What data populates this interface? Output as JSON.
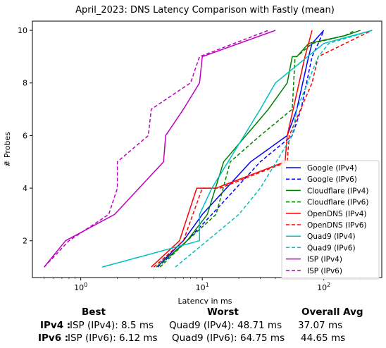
{
  "chart_data": {
    "type": "line",
    "title": "April_2023: DNS Latency Comparison with Fastly (mean)",
    "xlabel": "Latency in ms",
    "ylabel": "# Probes",
    "xscale": "log",
    "xlim": [
      0.4,
      300
    ],
    "ylim": [
      0.6,
      10.35
    ],
    "yticks": [
      2,
      4,
      6,
      8,
      10
    ],
    "xticks": [
      {
        "value": 1,
        "base": "10",
        "exp": "0"
      },
      {
        "value": 10,
        "base": "10",
        "exp": "1"
      },
      {
        "value": 100,
        "base": "10",
        "exp": "2"
      }
    ],
    "grid": false,
    "legend_position": "lower-right",
    "series": [
      {
        "name": "Google (IPv4)",
        "color": "#0000ff",
        "dash": false,
        "x": [
          4.2,
          7,
          10,
          25,
          50,
          60,
          75,
          80,
          100
        ],
        "y": [
          1,
          2,
          3,
          5,
          6,
          7,
          9,
          9.5,
          10
        ]
      },
      {
        "name": "Google (IPv6)",
        "color": "#0000ff",
        "dash": true,
        "x": [
          4.3,
          7.5,
          12,
          30,
          55,
          65,
          80,
          90,
          100
        ],
        "y": [
          1,
          2,
          3,
          5,
          6,
          7,
          9,
          9.5,
          10
        ]
      },
      {
        "name": "Cloudflare (IPv4)",
        "color": "#008000",
        "dash": false,
        "x": [
          4.2,
          7.5,
          11,
          15,
          35,
          50,
          55,
          60,
          75,
          150,
          200
        ],
        "y": [
          1,
          2,
          3,
          5,
          7,
          8,
          9,
          9,
          9.5,
          9.8,
          10
        ]
      },
      {
        "name": "Cloudflare (IPv6)",
        "color": "#008000",
        "dash": true,
        "x": [
          4.5,
          7.5,
          13,
          17,
          30,
          55,
          58,
          60,
          80,
          150,
          180
        ],
        "y": [
          1,
          2,
          3,
          5,
          6,
          7,
          9,
          9,
          9.5,
          9.8,
          10
        ]
      },
      {
        "name": "OpenDNS (IPv4)",
        "color": "#ff0000",
        "dash": false,
        "x": [
          3.8,
          6.5,
          9,
          13,
          48,
          50,
          70,
          75,
          80
        ],
        "y": [
          1,
          2,
          4,
          4,
          5,
          6,
          9,
          9.5,
          10
        ]
      },
      {
        "name": "OpenDNS (IPv6)",
        "color": "#ff0000",
        "dash": true,
        "x": [
          4,
          7,
          10,
          14,
          50,
          52,
          80,
          90,
          250
        ],
        "y": [
          1,
          2,
          4,
          4,
          5,
          6,
          8,
          9,
          10
        ]
      },
      {
        "name": "Quad9 (IPv4)",
        "color": "#00bfbf",
        "dash": false,
        "x": [
          1.5,
          9.5,
          9.5,
          12,
          30,
          40,
          100,
          250
        ],
        "y": [
          1,
          2,
          3,
          4,
          7,
          8,
          9.5,
          10
        ]
      },
      {
        "name": "Quad9 (IPv6)",
        "color": "#00bfbf",
        "dash": true,
        "x": [
          6,
          11,
          20,
          30,
          55,
          60,
          90,
          110,
          250
        ],
        "y": [
          1,
          2,
          3,
          4,
          6,
          7,
          9,
          9.5,
          10
        ]
      },
      {
        "name": "ISP (IPv4)",
        "color": "#bf00bf",
        "dash": false,
        "x": [
          0.5,
          0.75,
          1.9,
          4.8,
          5,
          7,
          9.5,
          10,
          40
        ],
        "y": [
          1,
          2,
          3,
          5,
          6,
          7,
          8,
          9,
          10
        ]
      },
      {
        "name": "ISP (IPv6)",
        "color": "#bf00bf",
        "dash": true,
        "x": [
          0.5,
          0.8,
          1.7,
          2,
          2,
          3.6,
          3.8,
          8,
          9.5,
          35
        ],
        "y": [
          1,
          2,
          3,
          4,
          5,
          6,
          7,
          8,
          9,
          10
        ]
      }
    ]
  },
  "summary": {
    "headers": {
      "best": "Best",
      "worst": "Worst",
      "avg": "Overall Avg"
    },
    "rows": [
      {
        "label": "IPv4 :",
        "best": "ISP (IPv4): 8.5 ms",
        "worst": "Quad9 (IPv4): 48.71 ms",
        "avg": "37.07 ms"
      },
      {
        "label": "IPv6 :",
        "best": "ISP (IPv6): 6.12 ms",
        "worst": "Quad9 (IPv6): 64.75 ms",
        "avg": "44.65 ms"
      }
    ]
  }
}
